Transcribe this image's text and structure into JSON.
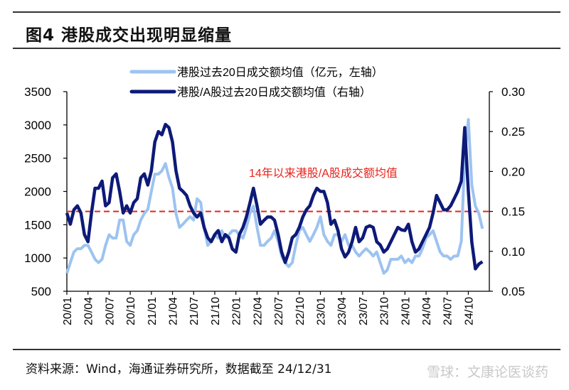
{
  "title": "图4  港股成交出现明显缩量",
  "source": "资料来源：Wind，海通证券研究所，数据截至 24/12/31",
  "watermark": "雪球：文康论医谈药",
  "chart_data": {
    "type": "line",
    "title": "图4  港股成交出现明显缩量",
    "legend_placement": "top-center",
    "grid": false,
    "xlim": [
      "2020-01-01",
      "2024-12-31"
    ],
    "x_tick_labels": [
      "20/01",
      "20/04",
      "20/07",
      "20/10",
      "21/01",
      "21/04",
      "21/07",
      "21/10",
      "22/01",
      "22/04",
      "22/07",
      "22/10",
      "23/01",
      "23/04",
      "23/07",
      "23/10",
      "24/01",
      "24/04",
      "24/07",
      "24/10"
    ],
    "y_left": {
      "lim": [
        500,
        3500
      ],
      "ticks": [
        "500",
        "1000",
        "1500",
        "2000",
        "2500",
        "3000",
        "3500"
      ]
    },
    "y_right": {
      "lim": [
        0.05,
        0.3
      ],
      "ticks": [
        "0.05",
        "0.10",
        "0.15",
        "0.20",
        "0.25",
        "0.30"
      ]
    },
    "reference_line": {
      "value": 0.15,
      "axis": "right",
      "color": "#e8231b",
      "style": "dashed",
      "label": "14年以来港股/A股成交额均值"
    },
    "x": [
      "2020-01-01",
      "2020-01-16",
      "2020-02-01",
      "2020-02-16",
      "2020-03-01",
      "2020-03-16",
      "2020-04-01",
      "2020-04-16",
      "2020-05-01",
      "2020-05-16",
      "2020-06-01",
      "2020-06-16",
      "2020-07-01",
      "2020-07-16",
      "2020-08-01",
      "2020-08-16",
      "2020-09-01",
      "2020-09-16",
      "2020-10-01",
      "2020-10-16",
      "2020-11-01",
      "2020-11-16",
      "2020-12-01",
      "2020-12-16",
      "2021-01-01",
      "2021-01-16",
      "2021-02-01",
      "2021-02-16",
      "2021-03-01",
      "2021-03-16",
      "2021-04-01",
      "2021-04-16",
      "2021-05-01",
      "2021-05-16",
      "2021-06-01",
      "2021-06-16",
      "2021-07-01",
      "2021-07-16",
      "2021-08-01",
      "2021-08-16",
      "2021-09-01",
      "2021-09-16",
      "2021-10-01",
      "2021-10-16",
      "2021-11-01",
      "2021-11-16",
      "2021-12-01",
      "2021-12-16",
      "2022-01-01",
      "2022-01-16",
      "2022-02-01",
      "2022-02-16",
      "2022-03-01",
      "2022-03-16",
      "2022-04-01",
      "2022-04-16",
      "2022-05-01",
      "2022-05-16",
      "2022-06-01",
      "2022-06-16",
      "2022-07-01",
      "2022-07-16",
      "2022-08-01",
      "2022-08-16",
      "2022-09-01",
      "2022-09-16",
      "2022-10-01",
      "2022-10-16",
      "2022-11-01",
      "2022-11-16",
      "2022-12-01",
      "2022-12-16",
      "2023-01-01",
      "2023-01-16",
      "2023-02-01",
      "2023-02-16",
      "2023-03-01",
      "2023-03-16",
      "2023-04-01",
      "2023-04-16",
      "2023-05-01",
      "2023-05-16",
      "2023-06-01",
      "2023-06-16",
      "2023-07-01",
      "2023-07-16",
      "2023-08-01",
      "2023-08-16",
      "2023-09-01",
      "2023-09-16",
      "2023-10-01",
      "2023-10-16",
      "2023-11-01",
      "2023-11-16",
      "2023-12-01",
      "2023-12-16",
      "2024-01-01",
      "2024-01-16",
      "2024-02-01",
      "2024-02-16",
      "2024-03-01",
      "2024-03-16",
      "2024-04-01",
      "2024-04-16",
      "2024-05-01",
      "2024-05-16",
      "2024-06-01",
      "2024-06-16",
      "2024-07-01",
      "2024-07-16",
      "2024-08-01",
      "2024-08-16",
      "2024-09-01",
      "2024-09-16",
      "2024-10-01",
      "2024-10-16",
      "2024-11-01",
      "2024-11-16",
      "2024-12-01"
    ],
    "series": [
      {
        "name": "港股过去20日成交额均值（亿元，左轴）",
        "axis": "left",
        "color": "#9dc3f0",
        "values": [
          770,
          930,
          1090,
          1140,
          1140,
          1190,
          1190,
          1090,
          980,
          930,
          980,
          1190,
          1350,
          1300,
          1300,
          1570,
          1570,
          1250,
          1190,
          1350,
          1410,
          1570,
          1670,
          1730,
          2000,
          2260,
          2260,
          2310,
          2420,
          2210,
          2050,
          1670,
          1460,
          1510,
          1570,
          1620,
          1570,
          1890,
          1835,
          1460,
          1190,
          1250,
          1350,
          1300,
          1410,
          1300,
          1350,
          1410,
          1410,
          1350,
          1300,
          1460,
          1670,
          1780,
          1460,
          1190,
          1190,
          1250,
          1300,
          1410,
          1250,
          1030,
          930,
          870,
          930,
          1190,
          1410,
          1460,
          1350,
          1250,
          1350,
          1460,
          1620,
          1350,
          1250,
          1190,
          1350,
          1350,
          1250,
          1350,
          1190,
          1190,
          1090,
          1030,
          1090,
          1140,
          1090,
          1030,
          1090,
          930,
          770,
          820,
          980,
          980,
          980,
          1030,
          930,
          980,
          930,
          1030,
          1030,
          1140,
          1300,
          1350,
          1410,
          1250,
          1090,
          1030,
          1030,
          980,
          1030,
          1030,
          1250,
          2530,
          3080,
          2100,
          1780,
          1670,
          1440
        ]
      },
      {
        "name": "港股/A股过去20日成交额均值（右轴）",
        "axis": "right",
        "color": "#0d1a78",
        "values": [
          0.148,
          0.134,
          0.152,
          0.157,
          0.148,
          0.121,
          0.112,
          0.148,
          0.179,
          0.179,
          0.188,
          0.157,
          0.161,
          0.192,
          0.197,
          0.175,
          0.148,
          0.157,
          0.148,
          0.161,
          0.166,
          0.192,
          0.197,
          0.183,
          0.201,
          0.237,
          0.25,
          0.246,
          0.259,
          0.255,
          0.237,
          0.201,
          0.179,
          0.175,
          0.17,
          0.157,
          0.148,
          0.143,
          0.148,
          0.13,
          0.117,
          0.112,
          0.121,
          0.126,
          0.112,
          0.121,
          0.117,
          0.103,
          0.099,
          0.121,
          0.13,
          0.143,
          0.161,
          0.179,
          0.157,
          0.134,
          0.139,
          0.143,
          0.143,
          0.139,
          0.121,
          0.099,
          0.086,
          0.099,
          0.117,
          0.121,
          0.13,
          0.143,
          0.152,
          0.157,
          0.17,
          0.179,
          0.175,
          0.175,
          0.161,
          0.134,
          0.139,
          0.126,
          0.103,
          0.093,
          0.099,
          0.112,
          0.13,
          0.112,
          0.117,
          0.13,
          0.132,
          0.13,
          0.112,
          0.108,
          0.099,
          0.103,
          0.112,
          0.121,
          0.13,
          0.127,
          0.126,
          0.134,
          0.112,
          0.099,
          0.103,
          0.112,
          0.121,
          0.13,
          0.148,
          0.17,
          0.161,
          0.152,
          0.152,
          0.157,
          0.166,
          0.175,
          0.188,
          0.255,
          0.175,
          0.112,
          0.078,
          0.084,
          0.087
        ]
      }
    ]
  }
}
